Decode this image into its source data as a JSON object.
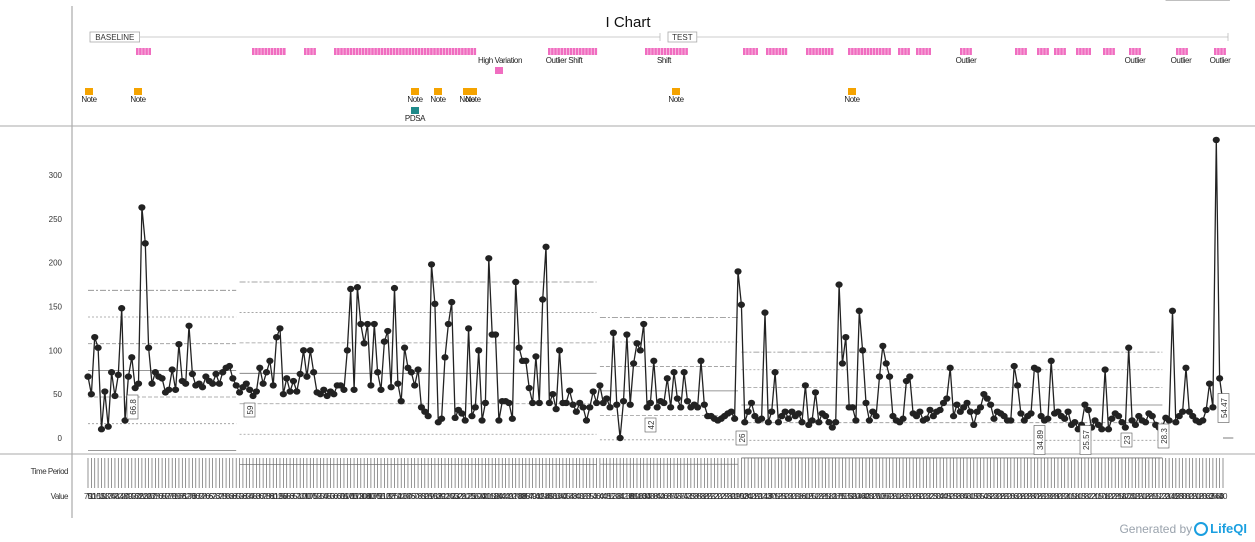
{
  "chart_data": {
    "type": "line",
    "title": "I Chart",
    "phases": [
      "BASELINE",
      "TEST"
    ],
    "ylim": [
      -20,
      360
    ],
    "yticks": [
      0,
      50,
      100,
      150,
      200,
      250,
      300
    ],
    "row_labels": [
      "Time Period",
      "Value"
    ],
    "series": [
      {
        "values": [
          70,
          50,
          115,
          103,
          10,
          53,
          13,
          75,
          48,
          72,
          148,
          20,
          70,
          92,
          57,
          62,
          263,
          222,
          103,
          62,
          75,
          70,
          68,
          52,
          55,
          78,
          55,
          107,
          65,
          62,
          128,
          73,
          60,
          62,
          58,
          70,
          65,
          62,
          73,
          62,
          75,
          80,
          82,
          68,
          60,
          52,
          58,
          62,
          55,
          48,
          53,
          80,
          62,
          75,
          88,
          60,
          115,
          125,
          50,
          68,
          53,
          65,
          53,
          73,
          100,
          70,
          100,
          75,
          52,
          50,
          55,
          48,
          53,
          50,
          60,
          60,
          55,
          100,
          170,
          55,
          172,
          130,
          108,
          130,
          60,
          130,
          75,
          55,
          110,
          122,
          58,
          171,
          62,
          42,
          103,
          80,
          75,
          60,
          78,
          35,
          30,
          25,
          198,
          153,
          18,
          22,
          92,
          130,
          155,
          23,
          32,
          28,
          20,
          125,
          25,
          35,
          100,
          20,
          40,
          205,
          118,
          118,
          20,
          42,
          42,
          40,
          22,
          178,
          103,
          88,
          88,
          57,
          40,
          93,
          40,
          158,
          218,
          40,
          50,
          33,
          100,
          40,
          40,
          54,
          38,
          30,
          40,
          35,
          20,
          35,
          53,
          40,
          60,
          40,
          45,
          35,
          120,
          38,
          0,
          42,
          118,
          38,
          85,
          108,
          100,
          130,
          35,
          40,
          88,
          35,
          42,
          40,
          68,
          35,
          75,
          45,
          35,
          75,
          42,
          35,
          38,
          35,
          88,
          38,
          25,
          25,
          22,
          20,
          22,
          25,
          28,
          30,
          22,
          190,
          152,
          18,
          30,
          40,
          25,
          20,
          22,
          143,
          18,
          30,
          75,
          18,
          25,
          30,
          22,
          30,
          25,
          28,
          18,
          60,
          15,
          20,
          52,
          18,
          28,
          25,
          18,
          12,
          18,
          175,
          85,
          115,
          35,
          35,
          20,
          145,
          100,
          40,
          20,
          30,
          25,
          70,
          105,
          85,
          70,
          25,
          20,
          18,
          22,
          65,
          70,
          28,
          25,
          30,
          20,
          22,
          32,
          25,
          30,
          32,
          40,
          45,
          80,
          25,
          38,
          30,
          35,
          40,
          30,
          15,
          30,
          35,
          50,
          45,
          38,
          22,
          30,
          28,
          25,
          20,
          20,
          82,
          60,
          28,
          20,
          25,
          28,
          80,
          78,
          25,
          20,
          22,
          88,
          28,
          30,
          25,
          22,
          30,
          15,
          18,
          10,
          15,
          38,
          32,
          12,
          20,
          15,
          10,
          78,
          10,
          22,
          28,
          25,
          18,
          12,
          103,
          20,
          15,
          25,
          20,
          18,
          28,
          25,
          15,
          12,
          13,
          23,
          20,
          145,
          18,
          25,
          30,
          80,
          30,
          25,
          20,
          18,
          20,
          32,
          62,
          35,
          340,
          68,
          40
        ]
      }
    ],
    "point_labels": [
      "66.8",
      "59",
      "42",
      "26",
      "34.89",
      "25.57",
      "23",
      "28.3",
      "54.47"
    ],
    "annotation_rows": [
      {
        "labels": [
          "High Variation",
          "Outlier Shift",
          "Shift",
          "Outlier",
          "Outlier",
          "Outlier",
          "Outlier"
        ]
      },
      {
        "labels": [
          "Note",
          "Note",
          "Note",
          "Note",
          "Note",
          "Note",
          "Note",
          "Note",
          "Note"
        ]
      },
      {
        "labels": [
          "PDSA"
        ]
      }
    ],
    "colors": {
      "marker_pink": "#f06dc0",
      "marker_orange": "#f5a300",
      "marker_teal": "#1f8a8a",
      "line": "#222222"
    }
  },
  "footer": {
    "prefix": "Generated by",
    "brand": "LifeQI"
  }
}
